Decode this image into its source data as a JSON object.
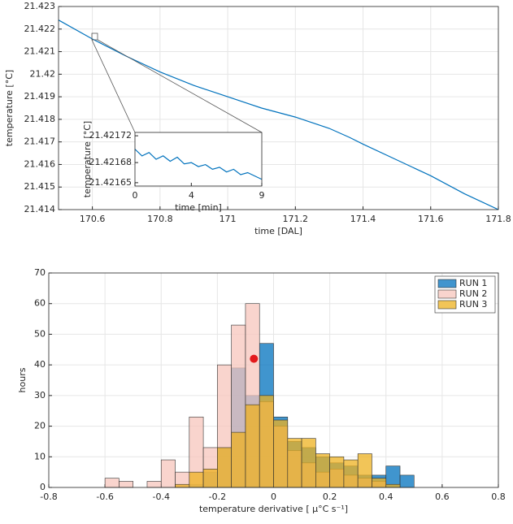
{
  "chart_data": [
    {
      "type": "line",
      "xlabel": "time [DAL]",
      "ylabel": "temperature [°C]",
      "x": [
        170.5,
        170.6,
        170.7,
        170.8,
        170.9,
        171,
        171.1,
        171.2,
        171.3,
        171.36,
        171.4,
        171.5,
        171.6,
        171.7,
        171.8
      ],
      "values": [
        21.4224,
        21.42156,
        21.4208,
        21.4201,
        21.4195,
        21.419,
        21.4185,
        21.4181,
        21.4176,
        21.4172,
        21.4169,
        21.4162,
        21.4155,
        21.4147,
        21.414
      ],
      "color": "#0072bd",
      "grid": true,
      "xlim": [
        170.5,
        171.8
      ],
      "xticks": [
        170.6,
        170.8,
        171,
        171.2,
        171.4,
        171.6,
        171.8
      ],
      "ylim": [
        21.414,
        21.423
      ],
      "yticks": [
        21.414,
        21.415,
        21.416,
        21.417,
        21.418,
        21.419,
        21.42,
        21.421,
        21.422,
        21.423
      ],
      "inset": {
        "type": "line",
        "xlabel": "time [min]",
        "ylabel": "temperature [°C]",
        "x": [
          0,
          0.5,
          1,
          1.5,
          2,
          2.5,
          3,
          3.5,
          4,
          4.5,
          5,
          5.5,
          6,
          6.5,
          7,
          7.5,
          8,
          8.5,
          9
        ],
        "values": [
          21.4217,
          21.42169,
          21.421695,
          21.421685,
          21.42169,
          21.421682,
          21.421688,
          21.421678,
          21.42168,
          21.421674,
          21.421677,
          21.42167,
          21.421673,
          21.421666,
          21.42167,
          21.421662,
          21.421665,
          21.42166,
          21.421655
        ],
        "color": "#0072bd",
        "grid": false,
        "xlim": [
          0,
          9
        ],
        "xticks": [
          0,
          4,
          9
        ],
        "ylim": [
          21.421645,
          21.421725
        ],
        "yticks": [
          21.42165,
          21.42168,
          21.42172
        ]
      }
    },
    {
      "type": "histogram",
      "xlabel": "temperature derivative [ μ°C s⁻¹]",
      "ylabel": "hours",
      "grid": true,
      "legend": "top-right",
      "bar_opacity": 0.75,
      "bins": [
        -0.8,
        -0.75,
        -0.7,
        -0.65,
        -0.6,
        -0.55,
        -0.5,
        -0.45,
        -0.4,
        -0.35,
        -0.3,
        -0.25,
        -0.2,
        -0.15,
        -0.1,
        -0.05,
        0,
        0.05,
        0.1,
        0.15,
        0.2,
        0.25,
        0.3,
        0.35,
        0.4,
        0.45,
        0.5,
        0.55,
        0.6,
        0.65,
        0.7,
        0.75,
        0.8
      ],
      "series": [
        {
          "name": "RUN 1",
          "color": "#0072bd",
          "values": [
            0,
            0,
            0,
            0,
            0,
            0,
            0,
            0,
            0,
            0,
            1,
            5,
            13,
            39,
            30,
            47,
            23,
            15,
            13,
            10,
            8,
            7,
            4,
            4,
            7,
            4,
            0,
            0,
            0,
            0,
            0,
            0
          ]
        },
        {
          "name": "RUN 2",
          "color": "#f7c6bc",
          "values": [
            0,
            0,
            0,
            0,
            3,
            2,
            0,
            2,
            9,
            5,
            23,
            13,
            40,
            53,
            60,
            28,
            20,
            12,
            8,
            5,
            6,
            4,
            3,
            2,
            0,
            0,
            0,
            0,
            0,
            0,
            0,
            0
          ]
        },
        {
          "name": "RUN 3",
          "color": "#edb120",
          "values": [
            0,
            0,
            0,
            0,
            0,
            0,
            0,
            0,
            0,
            1,
            5,
            6,
            13,
            18,
            27,
            30,
            22,
            16,
            16,
            11,
            10,
            9,
            11,
            3,
            1,
            0,
            0,
            0,
            0,
            0,
            0,
            0
          ]
        }
      ],
      "highlight": {
        "x": -0.07,
        "y": 42,
        "color": "#e3191c"
      },
      "xlim": [
        -0.8,
        0.8
      ],
      "xticks": [
        -0.8,
        -0.6,
        -0.4,
        -0.2,
        0,
        0.2,
        0.4,
        0.6,
        0.8
      ],
      "ylim": [
        0,
        70
      ],
      "yticks": [
        0,
        10,
        20,
        30,
        40,
        50,
        60,
        70
      ]
    }
  ]
}
